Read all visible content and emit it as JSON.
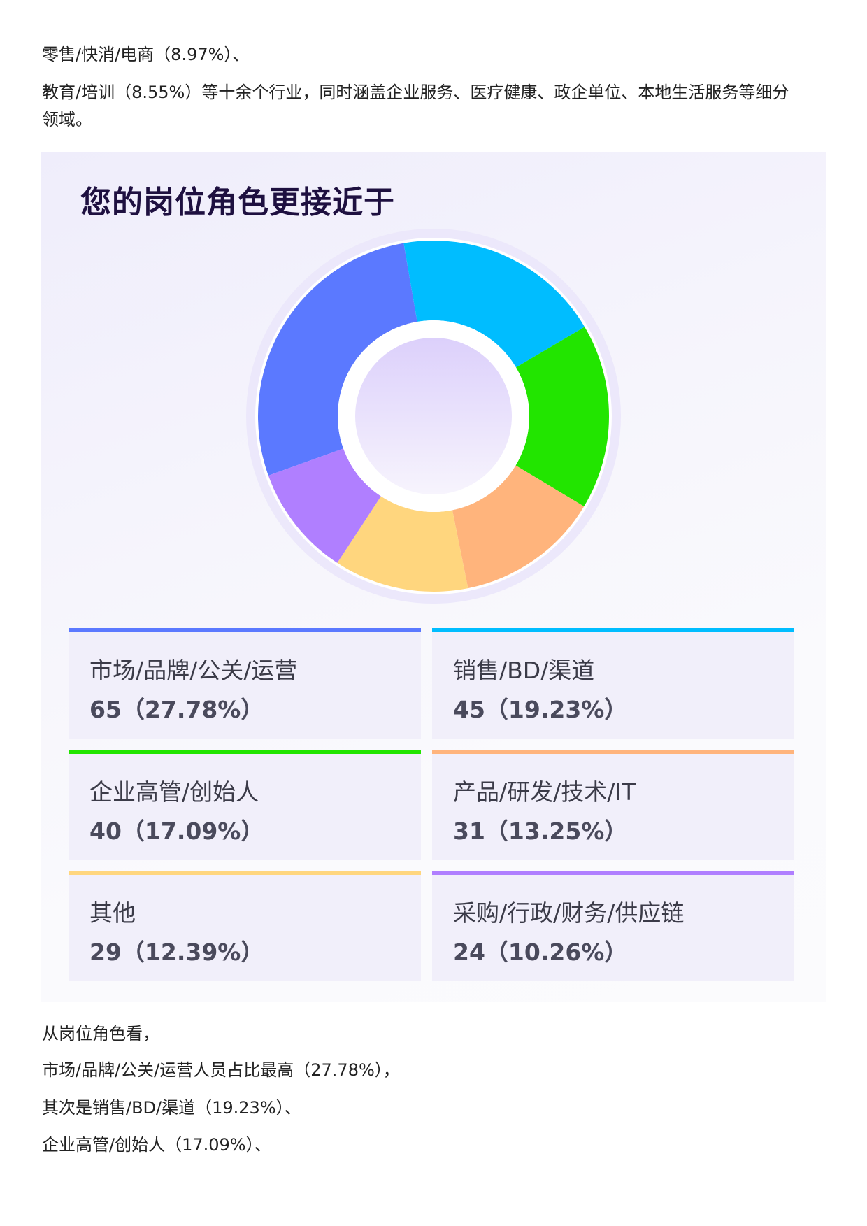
{
  "intro": {
    "line1": "零售/快消/电商（8.97%）、",
    "line2": "教育/培训（8.55%）等十余个行业，同时涵盖企业服务、医疗健康、政企单位、本地生活服务等细分",
    "line3": "领域。"
  },
  "chart_data": {
    "type": "pie",
    "subtype": "donut",
    "title": "您的岗位角色更接近于",
    "legend_placement": "bottom",
    "slices": [
      {
        "label": "市场/品牌/公关/运营",
        "count": 65,
        "percent": 27.78,
        "value_text": "65（27.78%）",
        "color": "#5b79ff"
      },
      {
        "label": "销售/BD/渠道",
        "count": 45,
        "percent": 19.23,
        "value_text": "45（19.23%）",
        "color": "#00bdff"
      },
      {
        "label": "企业高管/创始人",
        "count": 40,
        "percent": 17.09,
        "value_text": "40（17.09%）",
        "color": "#22e500"
      },
      {
        "label": "产品/研发/技术/IT",
        "count": 31,
        "percent": 13.25,
        "value_text": "31（13.25%）",
        "color": "#ffb47c"
      },
      {
        "label": "其他",
        "count": 29,
        "percent": 12.39,
        "value_text": "29（12.39%）",
        "color": "#ffd67e"
      },
      {
        "label": "采购/行政/财务/供应链",
        "count": 24,
        "percent": 10.26,
        "value_text": "24（10.26%）",
        "color": "#b07fff"
      }
    ]
  },
  "outro": {
    "line1": "从岗位角色看，",
    "line2": "市场/品牌/公关/运营人员占比最高（27.78%），",
    "line3": "其次是销售/BD/渠道（19.23%）、",
    "line4": "企业高管/创始人（17.09%）、"
  }
}
